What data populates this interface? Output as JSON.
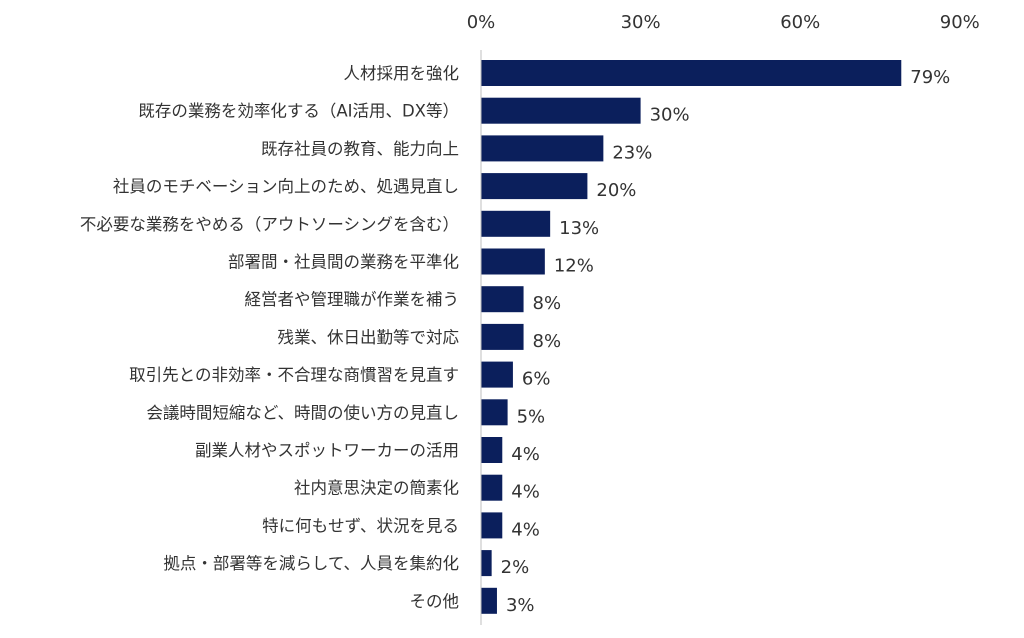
{
  "chart_data": {
    "type": "bar",
    "orientation": "horizontal",
    "categories": [
      "人材採用を強化",
      "既存の業務を効率化する（AI活用、DX等）",
      "既存社員の教育、能力向上",
      "社員のモチベーション向上のため、処遇見直し",
      "不必要な業務をやめる（アウトソーシングを含む）",
      "部署間・社員間の業務を平準化",
      "経営者や管理職が作業を補う",
      "残業、休日出勤等で対応",
      "取引先との非効率・不合理な商慣習を見直す",
      "会議時間短縮など、時間の使い方の見直し",
      "副業人材やスポットワーカーの活用",
      "社内意思決定の簡素化",
      "特に何もせず、状況を見る",
      "拠点・部署等を減らして、人員を集約化",
      "その他"
    ],
    "values": [
      79,
      30,
      23,
      20,
      13,
      12,
      8,
      8,
      6,
      5,
      4,
      4,
      4,
      2,
      3
    ],
    "value_labels": [
      "79%",
      "30%",
      "23%",
      "20%",
      "13%",
      "12%",
      "8%",
      "8%",
      "6%",
      "5%",
      "4%",
      "4%",
      "4%",
      "2%",
      "3%"
    ],
    "xlim": [
      0,
      90
    ],
    "xticks": [
      0,
      30,
      60,
      90
    ],
    "xtick_labels": [
      "0%",
      "30%",
      "60%",
      "90%"
    ],
    "axis_position": "top",
    "grid": false,
    "bar_color": "#0b1f5c",
    "title": "",
    "xlabel": "",
    "ylabel": ""
  }
}
